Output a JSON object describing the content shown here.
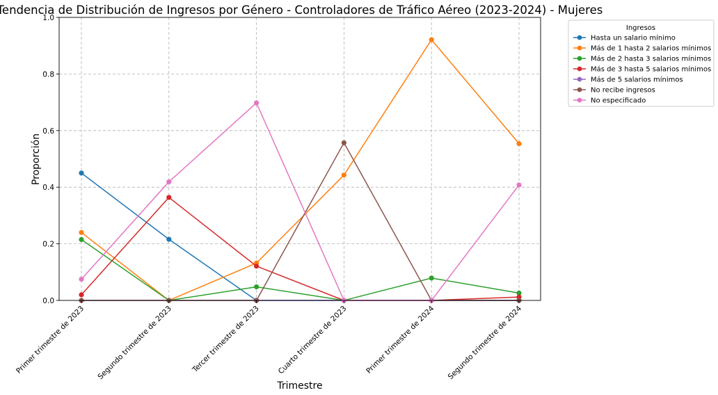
{
  "chart_data": {
    "type": "line",
    "title": "Tendencia de Distribución de Ingresos por Género - Controladores de Tráfico Aéreo (2023-2024) - Mujeres",
    "xlabel": "Trimestre",
    "ylabel": "Proporción",
    "ylim": [
      0,
      1
    ],
    "yticks": [
      "0.0",
      "0.2",
      "0.4",
      "0.6",
      "0.8",
      "1.0"
    ],
    "grid": true,
    "legend_title": "Ingresos",
    "legend_position": "outside-top-right",
    "categories": [
      "Primer trimestre de 2023",
      "Segundo trimestre de 2023",
      "Tercer trimestre de 2023",
      "Cuarto trimestre de 2023",
      "Primer trimestre de 2024",
      "Segundo trimestre de 2024"
    ],
    "series": [
      {
        "name": "Hasta un salario mínimo",
        "color": "#1f77b4",
        "values": [
          0.45,
          0.216,
          0.0,
          0.0,
          0.0,
          0.0
        ]
      },
      {
        "name": "Más de 1 hasta 2 salarios mínimos",
        "color": "#ff7f0e",
        "values": [
          0.24,
          0.0,
          0.132,
          0.443,
          0.921,
          0.554
        ]
      },
      {
        "name": "Más de 2 hasta 3 salarios mínimos",
        "color": "#2ca02c",
        "values": [
          0.215,
          0.0,
          0.048,
          0.0,
          0.079,
          0.026
        ]
      },
      {
        "name": "Más de 3 hasta 5 salarios mínimos",
        "color": "#d62728",
        "values": [
          0.02,
          0.364,
          0.121,
          0.0,
          0.0,
          0.012
        ]
      },
      {
        "name": "Más de 5 salarios mínimos",
        "color": "#9467bd",
        "values": [
          0.0,
          0.0,
          0.0,
          0.0,
          0.0,
          0.0
        ]
      },
      {
        "name": "No recibe ingresos",
        "color": "#8c564b",
        "values": [
          0.0,
          0.0,
          0.0,
          0.557,
          0.0,
          0.0
        ]
      },
      {
        "name": "No especificado",
        "color": "#e377c2",
        "values": [
          0.075,
          0.419,
          0.698,
          0.0,
          0.0,
          0.408
        ]
      }
    ]
  }
}
